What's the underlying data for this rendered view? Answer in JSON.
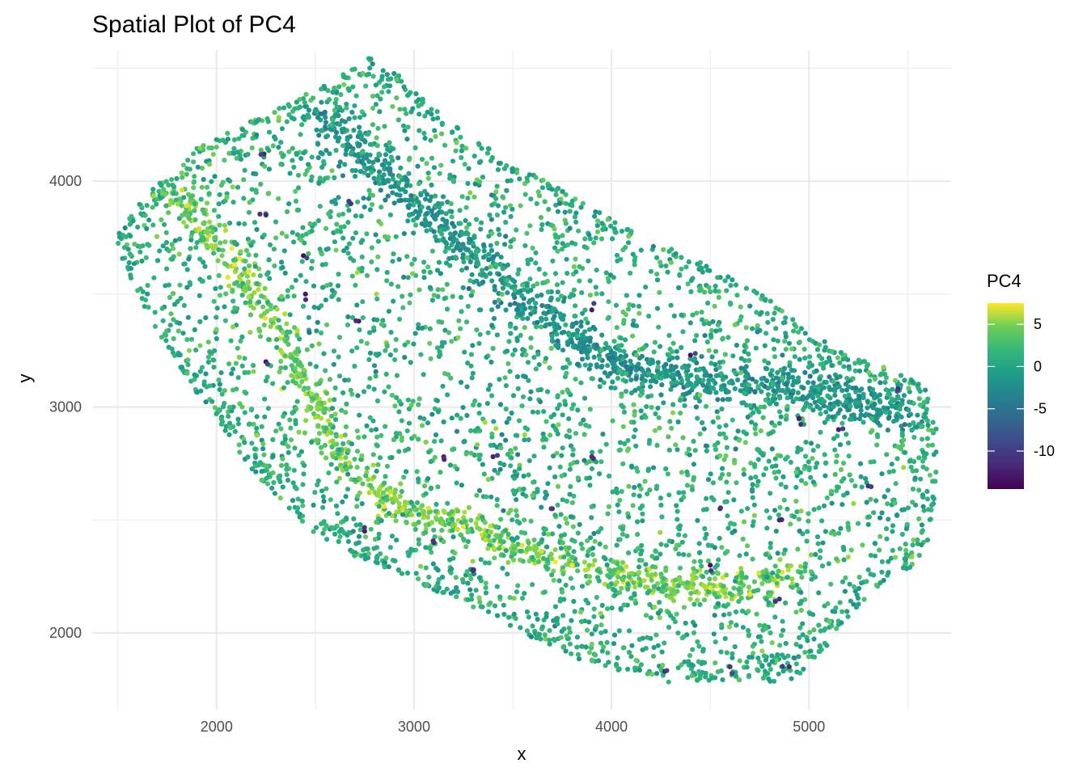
{
  "chart_data": {
    "type": "scatter",
    "title": "Spatial Plot of PC4",
    "xlabel": "x",
    "ylabel": "y",
    "xlim": [
      1370,
      5720
    ],
    "ylim": [
      1660,
      4580
    ],
    "x_ticks": [
      2000,
      3000,
      4000,
      5000
    ],
    "x_tick_labels": [
      "2000",
      "3000",
      "4000",
      "5000"
    ],
    "y_ticks": [
      2000,
      3000,
      4000
    ],
    "y_tick_labels": [
      "2000",
      "3000",
      "4000"
    ],
    "grid": true,
    "colormap": "viridis",
    "color_range": [
      -14.5,
      7.5
    ],
    "legend": {
      "title": "PC4",
      "placement": "right",
      "ticks": [
        5,
        0,
        -5,
        -10
      ],
      "tick_labels": [
        "5",
        "0",
        "-5",
        "-10"
      ]
    },
    "series": [
      {
        "name": "PC4",
        "points": "approximately 6000 spots forming a curved tissue section spanning x ≈ 1480–5660 and y ≈ 1770–4560; a bright yellow-green band (PC4 ≈ 4–7) runs from (1750, 3970) down through (2500, 2950) and (3500, 2420) to (4900, 2280); a darker teal band (PC4 ≈ -3 to -5) runs from (2600, 4280) through (3500, 3600) to (5300, 3000); outer rim and interior mostly green (PC4 ≈ -2 to 2); scattered dark purple spots (PC4 ≈ -10 to -14)",
        "shape_outline": [
          [
            1490,
            3770
          ],
          [
            1550,
            3840
          ],
          [
            1680,
            3980
          ],
          [
            1780,
            4020
          ],
          [
            1900,
            4150
          ],
          [
            2000,
            4200
          ],
          [
            2150,
            4260
          ],
          [
            2300,
            4320
          ],
          [
            2420,
            4370
          ],
          [
            2560,
            4440
          ],
          [
            2680,
            4500
          ],
          [
            2800,
            4560
          ],
          [
            2960,
            4440
          ],
          [
            3150,
            4280
          ],
          [
            3350,
            4180
          ],
          [
            3550,
            4060
          ],
          [
            3720,
            3980
          ],
          [
            3900,
            3880
          ],
          [
            4100,
            3780
          ],
          [
            4300,
            3700
          ],
          [
            4550,
            3600
          ],
          [
            4800,
            3480
          ],
          [
            5000,
            3330
          ],
          [
            5200,
            3230
          ],
          [
            5400,
            3170
          ],
          [
            5580,
            3110
          ],
          [
            5660,
            2870
          ],
          [
            5640,
            2620
          ],
          [
            5600,
            2400
          ],
          [
            5520,
            2280
          ],
          [
            5410,
            2230
          ],
          [
            5300,
            2170
          ],
          [
            5200,
            2060
          ],
          [
            5100,
            1950
          ],
          [
            5000,
            1840
          ],
          [
            4900,
            1780
          ],
          [
            4700,
            1790
          ],
          [
            4500,
            1790
          ],
          [
            4300,
            1780
          ],
          [
            4100,
            1820
          ],
          [
            3900,
            1860
          ],
          [
            3700,
            1930
          ],
          [
            3500,
            2020
          ],
          [
            3300,
            2110
          ],
          [
            3100,
            2190
          ],
          [
            2900,
            2270
          ],
          [
            2700,
            2340
          ],
          [
            2500,
            2440
          ],
          [
            2350,
            2560
          ],
          [
            2200,
            2700
          ],
          [
            2050,
            2880
          ],
          [
            1900,
            3060
          ],
          [
            1750,
            3250
          ],
          [
            1620,
            3460
          ],
          [
            1520,
            3640
          ],
          [
            1490,
            3770
          ]
        ],
        "bright_band_curve": [
          [
            1750,
            3970
          ],
          [
            1950,
            3800
          ],
          [
            2120,
            3600
          ],
          [
            2300,
            3350
          ],
          [
            2450,
            3100
          ],
          [
            2550,
            2900
          ],
          [
            2700,
            2720
          ],
          [
            2900,
            2570
          ],
          [
            3100,
            2520
          ],
          [
            3350,
            2450
          ],
          [
            3550,
            2380
          ],
          [
            3800,
            2300
          ],
          [
            4050,
            2260
          ],
          [
            4300,
            2210
          ],
          [
            4550,
            2200
          ],
          [
            4750,
            2210
          ],
          [
            4920,
            2290
          ]
        ],
        "dark_band_curve": [
          [
            2550,
            4290
          ],
          [
            2750,
            4120
          ],
          [
            2950,
            3950
          ],
          [
            3150,
            3800
          ],
          [
            3350,
            3650
          ],
          [
            3550,
            3500
          ],
          [
            3750,
            3340
          ],
          [
            3950,
            3230
          ],
          [
            4200,
            3150
          ],
          [
            4450,
            3120
          ],
          [
            4700,
            3100
          ],
          [
            5000,
            3080
          ],
          [
            5300,
            3020
          ],
          [
            5500,
            2950
          ]
        ],
        "dark_spots": [
          [
            2240,
            4120
          ],
          [
            2450,
            3500
          ],
          [
            2440,
            3670
          ],
          [
            2250,
            3200
          ],
          [
            2720,
            3380
          ],
          [
            3900,
            3430
          ],
          [
            3400,
            2780
          ],
          [
            3900,
            2780
          ],
          [
            3150,
            2780
          ],
          [
            3700,
            2550
          ],
          [
            4550,
            2550
          ],
          [
            4850,
            2500
          ],
          [
            4950,
            2950
          ],
          [
            5150,
            2900
          ],
          [
            5300,
            2650
          ],
          [
            4500,
            2300
          ],
          [
            4850,
            2150
          ],
          [
            3300,
            2280
          ],
          [
            3100,
            2400
          ],
          [
            2250,
            3850
          ],
          [
            2680,
            3900
          ],
          [
            4400,
            3230
          ],
          [
            5450,
            3080
          ],
          [
            4270,
            1830
          ],
          [
            4600,
            1850
          ],
          [
            4900,
            1850
          ],
          [
            2750,
            2450
          ]
        ],
        "bright_spots": [
          [
            2090,
            3630
          ],
          [
            2850,
            2560
          ],
          [
            4500,
            2200
          ],
          [
            4700,
            2170
          ],
          [
            3800,
            2300
          ],
          [
            3250,
            2470
          ]
        ]
      }
    ]
  }
}
